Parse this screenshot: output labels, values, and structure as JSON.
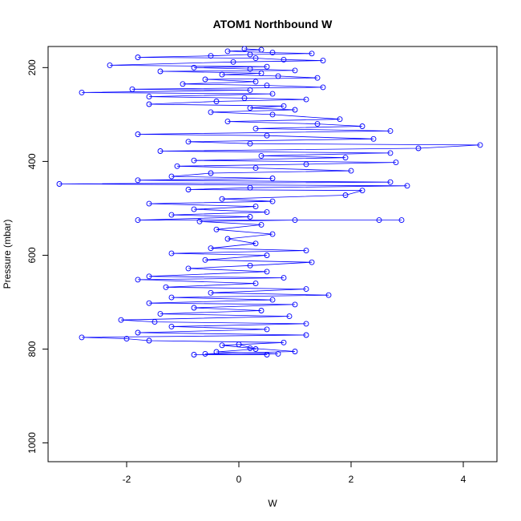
{
  "chart_data": {
    "type": "scatter",
    "title": "ATOM1 Northbound W",
    "xlabel": "W",
    "ylabel": "Pressure (mbar)",
    "xlim": [
      -3.4,
      4.6
    ],
    "ylim": [
      1040,
      155
    ],
    "y_reversed": true,
    "grid": false,
    "legend": "none",
    "x_ticks": [
      -2,
      0,
      2,
      4
    ],
    "y_ticks": [
      200,
      400,
      600,
      800,
      1000
    ],
    "marker": "open-circle",
    "connected": true,
    "color": "#0000ff",
    "series": [
      {
        "points": [
          [
            0.1,
            160
          ],
          [
            0.4,
            162
          ],
          [
            -0.2,
            165
          ],
          [
            0.6,
            168
          ],
          [
            1.3,
            170
          ],
          [
            0.2,
            172
          ],
          [
            -0.5,
            175
          ],
          [
            -1.8,
            178
          ],
          [
            0.3,
            180
          ],
          [
            0.8,
            183
          ],
          [
            1.5,
            185
          ],
          [
            -0.1,
            188
          ],
          [
            -2.3,
            195
          ],
          [
            0.5,
            198
          ],
          [
            -0.8,
            200
          ],
          [
            0.2,
            203
          ],
          [
            1.0,
            206
          ],
          [
            -1.4,
            208
          ],
          [
            0.4,
            212
          ],
          [
            -0.3,
            215
          ],
          [
            0.7,
            218
          ],
          [
            1.4,
            222
          ],
          [
            -0.6,
            225
          ],
          [
            0.3,
            230
          ],
          [
            -1.0,
            235
          ],
          [
            0.5,
            238
          ],
          [
            1.5,
            242
          ],
          [
            -1.9,
            246
          ],
          [
            0.2,
            248
          ],
          [
            -2.8,
            253
          ],
          [
            0.6,
            256
          ],
          [
            -1.6,
            262
          ],
          [
            0.1,
            265
          ],
          [
            1.2,
            268
          ],
          [
            -0.4,
            272
          ],
          [
            -1.6,
            278
          ],
          [
            0.8,
            282
          ],
          [
            0.2,
            286
          ],
          [
            1.0,
            290
          ],
          [
            -0.5,
            295
          ],
          [
            0.6,
            300
          ],
          [
            1.8,
            310
          ],
          [
            -0.2,
            315
          ],
          [
            1.4,
            320
          ],
          [
            2.2,
            325
          ],
          [
            0.3,
            330
          ],
          [
            2.7,
            335
          ],
          [
            -1.8,
            342
          ],
          [
            0.5,
            345
          ],
          [
            2.4,
            352
          ],
          [
            -0.9,
            358
          ],
          [
            0.2,
            362
          ],
          [
            4.3,
            365
          ],
          [
            3.2,
            372
          ],
          [
            -1.4,
            378
          ],
          [
            2.7,
            382
          ],
          [
            0.4,
            388
          ],
          [
            1.9,
            392
          ],
          [
            -0.8,
            398
          ],
          [
            2.8,
            402
          ],
          [
            1.2,
            406
          ],
          [
            -1.1,
            410
          ],
          [
            0.3,
            414
          ],
          [
            2.0,
            420
          ],
          [
            -0.5,
            425
          ],
          [
            -1.2,
            432
          ],
          [
            0.6,
            436
          ],
          [
            -1.8,
            440
          ],
          [
            2.7,
            444
          ],
          [
            -3.2,
            448
          ],
          [
            3.0,
            452
          ],
          [
            0.2,
            456
          ],
          [
            -0.9,
            460
          ],
          [
            2.2,
            462
          ],
          [
            1.9,
            472
          ],
          [
            -0.3,
            480
          ],
          [
            0.6,
            485
          ],
          [
            -1.6,
            490
          ],
          [
            0.3,
            496
          ],
          [
            -0.8,
            502
          ],
          [
            0.5,
            508
          ],
          [
            -1.2,
            514
          ],
          [
            0.2,
            518
          ],
          [
            -1.8,
            525
          ],
          [
            2.9,
            525
          ],
          [
            2.5,
            525
          ],
          [
            1.0,
            525
          ],
          [
            -0.7,
            528
          ],
          [
            0.4,
            535
          ],
          [
            -0.4,
            545
          ],
          [
            0.6,
            555
          ],
          [
            -0.2,
            565
          ],
          [
            0.3,
            575
          ],
          [
            -0.5,
            585
          ],
          [
            1.2,
            590
          ],
          [
            -1.2,
            596
          ],
          [
            0.5,
            600
          ],
          [
            -0.6,
            610
          ],
          [
            1.3,
            615
          ],
          [
            0.2,
            622
          ],
          [
            -0.9,
            628
          ],
          [
            0.5,
            635
          ],
          [
            -1.6,
            645
          ],
          [
            0.8,
            648
          ],
          [
            -1.8,
            652
          ],
          [
            0.3,
            660
          ],
          [
            -1.3,
            668
          ],
          [
            1.2,
            672
          ],
          [
            -0.5,
            680
          ],
          [
            1.6,
            685
          ],
          [
            -1.2,
            690
          ],
          [
            0.6,
            695
          ],
          [
            -1.6,
            702
          ],
          [
            1.0,
            705
          ],
          [
            -0.8,
            712
          ],
          [
            0.4,
            718
          ],
          [
            -1.4,
            725
          ],
          [
            0.9,
            730
          ],
          [
            -2.1,
            738
          ],
          [
            -1.5,
            742
          ],
          [
            1.2,
            746
          ],
          [
            -1.2,
            752
          ],
          [
            0.5,
            758
          ],
          [
            -1.8,
            765
          ],
          [
            1.2,
            770
          ],
          [
            -2.8,
            775
          ],
          [
            -2.0,
            778
          ],
          [
            -1.6,
            782
          ],
          [
            0.8,
            786
          ],
          [
            -0.3,
            792
          ],
          [
            0.2,
            798
          ],
          [
            1.0,
            805
          ],
          [
            -0.6,
            810
          ],
          [
            0.5,
            812
          ],
          [
            -0.8,
            812
          ],
          [
            0.7,
            810
          ],
          [
            -0.4,
            806
          ],
          [
            0.3,
            800
          ],
          [
            0.0,
            790
          ]
        ]
      }
    ]
  }
}
